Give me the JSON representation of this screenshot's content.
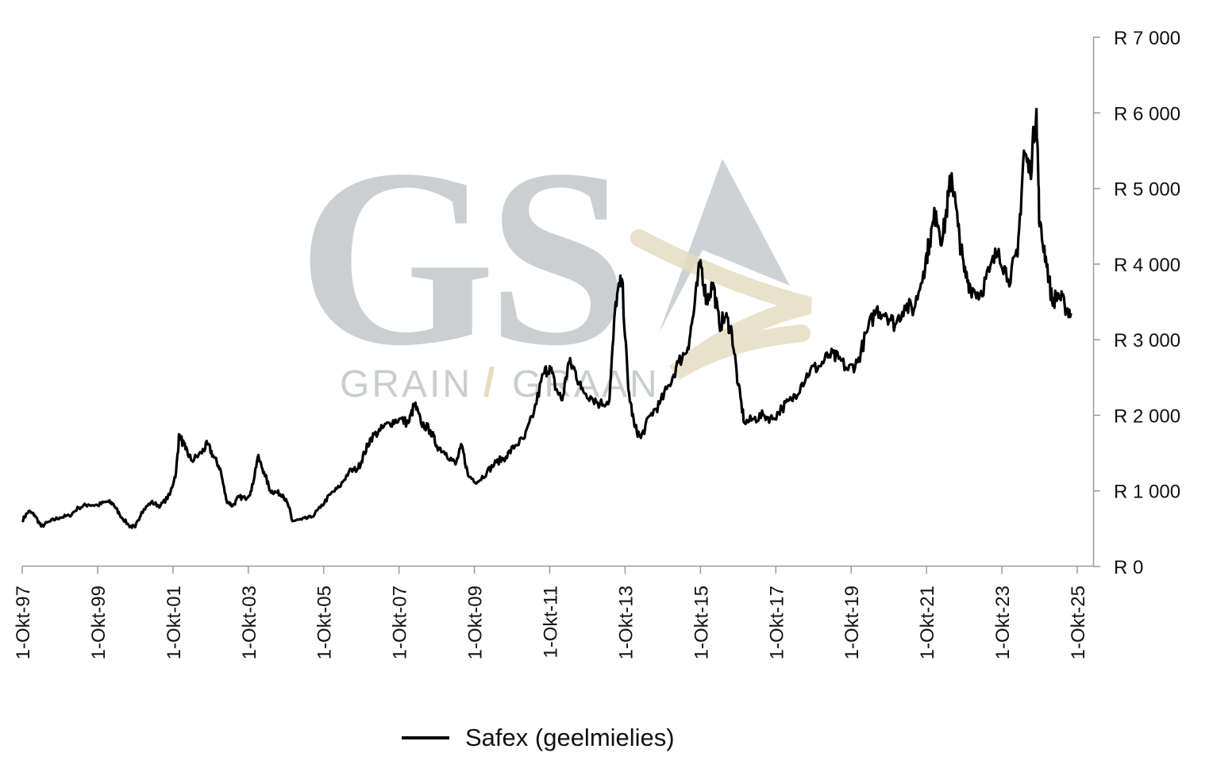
{
  "chart_data": {
    "type": "line",
    "title": "",
    "xlabel": "",
    "ylabel": "",
    "ylim": [
      0,
      7000
    ],
    "x_ticks": [
      "1-Okt-97",
      "1-Okt-99",
      "1-Okt-01",
      "1-Okt-03",
      "1-Okt-05",
      "1-Okt-07",
      "1-Okt-09",
      "1-Okt-11",
      "1-Okt-13",
      "1-Okt-15",
      "1-Okt-17",
      "1-Okt-19",
      "1-Okt-21",
      "1-Okt-23",
      "1-Okt-25"
    ],
    "y_ticks": [
      "R 0",
      "R 1 000",
      "R 2 000",
      "R 3 000",
      "R 4 000",
      "R 5 000",
      "R 6 000",
      "R 7 000"
    ],
    "y_tick_values": [
      0,
      1000,
      2000,
      3000,
      4000,
      5000,
      6000,
      7000
    ],
    "grid": false,
    "legend_position": "bottom",
    "series": [
      {
        "name": "Safex (geelmielies)",
        "color": "#000000",
        "points": [
          [
            "1997-10",
            610
          ],
          [
            "1997-12",
            730
          ],
          [
            "1998-02",
            680
          ],
          [
            "1998-04",
            530
          ],
          [
            "1998-07",
            600
          ],
          [
            "1998-10",
            650
          ],
          [
            "1999-01",
            670
          ],
          [
            "1999-04",
            780
          ],
          [
            "1999-07",
            820
          ],
          [
            "1999-10",
            810
          ],
          [
            "2000-01",
            860
          ],
          [
            "2000-03",
            830
          ],
          [
            "2000-05",
            690
          ],
          [
            "2000-08",
            540
          ],
          [
            "2000-10",
            520
          ],
          [
            "2000-12",
            720
          ],
          [
            "2001-03",
            850
          ],
          [
            "2001-06",
            800
          ],
          [
            "2001-09",
            950
          ],
          [
            "2001-11",
            1250
          ],
          [
            "2001-12",
            1750
          ],
          [
            "2002-02",
            1550
          ],
          [
            "2002-04",
            1400
          ],
          [
            "2002-07",
            1500
          ],
          [
            "2002-09",
            1620
          ],
          [
            "2002-11",
            1450
          ],
          [
            "2003-01",
            1300
          ],
          [
            "2003-03",
            880
          ],
          [
            "2003-05",
            800
          ],
          [
            "2003-07",
            920
          ],
          [
            "2003-09",
            900
          ],
          [
            "2003-11",
            1000
          ],
          [
            "2004-01",
            1450
          ],
          [
            "2004-03",
            1250
          ],
          [
            "2004-05",
            1000
          ],
          [
            "2004-07",
            980
          ],
          [
            "2004-09",
            950
          ],
          [
            "2004-11",
            780
          ],
          [
            "2004-12",
            600
          ],
          [
            "2005-03",
            620
          ],
          [
            "2005-06",
            650
          ],
          [
            "2005-09",
            780
          ],
          [
            "2005-12",
            950
          ],
          [
            "2006-03",
            1050
          ],
          [
            "2006-06",
            1250
          ],
          [
            "2006-09",
            1300
          ],
          [
            "2006-11",
            1500
          ],
          [
            "2007-01",
            1700
          ],
          [
            "2007-04",
            1800
          ],
          [
            "2007-07",
            1900
          ],
          [
            "2007-10",
            1950
          ],
          [
            "2008-01",
            1900
          ],
          [
            "2008-03",
            2150
          ],
          [
            "2008-05",
            1900
          ],
          [
            "2008-08",
            1800
          ],
          [
            "2008-10",
            1600
          ],
          [
            "2009-01",
            1500
          ],
          [
            "2009-04",
            1350
          ],
          [
            "2009-06",
            1600
          ],
          [
            "2009-08",
            1200
          ],
          [
            "2009-11",
            1120
          ],
          [
            "2010-02",
            1250
          ],
          [
            "2010-05",
            1380
          ],
          [
            "2010-08",
            1450
          ],
          [
            "2010-11",
            1600
          ],
          [
            "2011-02",
            1700
          ],
          [
            "2011-05",
            2050
          ],
          [
            "2011-08",
            2550
          ],
          [
            "2011-10",
            2650
          ],
          [
            "2011-12",
            2350
          ],
          [
            "2012-02",
            2200
          ],
          [
            "2012-04",
            2700
          ],
          [
            "2012-06",
            2600
          ],
          [
            "2012-08",
            2350
          ],
          [
            "2012-11",
            2250
          ],
          [
            "2013-02",
            2150
          ],
          [
            "2013-05",
            2200
          ],
          [
            "2013-07",
            3500
          ],
          [
            "2013-09",
            3800
          ],
          [
            "2013-11",
            2350
          ],
          [
            "2014-01",
            1850
          ],
          [
            "2014-03",
            1700
          ],
          [
            "2014-06",
            2000
          ],
          [
            "2014-09",
            2150
          ],
          [
            "2014-12",
            2400
          ],
          [
            "2015-03",
            2700
          ],
          [
            "2015-06",
            2900
          ],
          [
            "2015-08",
            3400
          ],
          [
            "2015-10",
            4050
          ],
          [
            "2015-12",
            3500
          ],
          [
            "2016-02",
            3750
          ],
          [
            "2016-04",
            3200
          ],
          [
            "2016-06",
            3300
          ],
          [
            "2016-08",
            3100
          ],
          [
            "2016-10",
            2400
          ],
          [
            "2016-12",
            1900
          ],
          [
            "2017-03",
            1950
          ],
          [
            "2017-06",
            2000
          ],
          [
            "2017-09",
            1950
          ],
          [
            "2017-12",
            2100
          ],
          [
            "2018-03",
            2200
          ],
          [
            "2018-06",
            2400
          ],
          [
            "2018-09",
            2600
          ],
          [
            "2018-12",
            2650
          ],
          [
            "2019-03",
            2800
          ],
          [
            "2019-06",
            2750
          ],
          [
            "2019-09",
            2600
          ],
          [
            "2019-12",
            2700
          ],
          [
            "2020-03",
            3100
          ],
          [
            "2020-06",
            3400
          ],
          [
            "2020-09",
            3350
          ],
          [
            "2020-12",
            3200
          ],
          [
            "2021-03",
            3450
          ],
          [
            "2021-06",
            3400
          ],
          [
            "2021-09",
            3900
          ],
          [
            "2021-11",
            4300
          ],
          [
            "2022-01",
            4700
          ],
          [
            "2022-03",
            4300
          ],
          [
            "2022-05",
            4900
          ],
          [
            "2022-06",
            5200
          ],
          [
            "2022-08",
            4500
          ],
          [
            "2022-10",
            3900
          ],
          [
            "2022-12",
            3700
          ],
          [
            "2023-03",
            3600
          ],
          [
            "2023-06",
            3900
          ],
          [
            "2023-09",
            4200
          ],
          [
            "2023-12",
            3800
          ],
          [
            "2024-03",
            4100
          ],
          [
            "2024-05",
            5500
          ],
          [
            "2024-07",
            5200
          ],
          [
            "2024-09",
            6050
          ],
          [
            "2024-10",
            4500
          ],
          [
            "2024-12",
            4100
          ],
          [
            "2025-02",
            3500
          ],
          [
            "2025-04",
            3600
          ],
          [
            "2025-06",
            3450
          ],
          [
            "2025-08",
            3350
          ]
        ]
      }
    ]
  },
  "watermark": {
    "logo": "GSA",
    "subtitle_left": "GRAIN",
    "subtitle_right": "GRAAN",
    "colors": {
      "grey": "#c9cdd0",
      "gold": "#e6dcc1"
    }
  },
  "legend": {
    "label": "Safex (geelmielies)"
  }
}
